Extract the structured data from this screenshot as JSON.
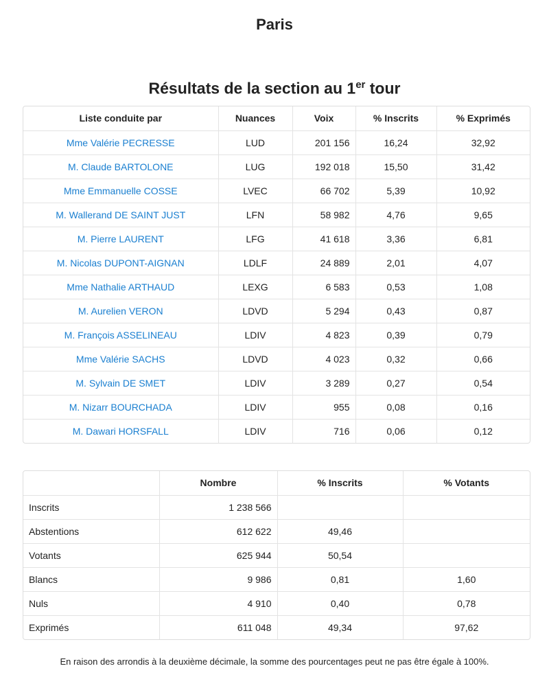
{
  "page_title": "Paris",
  "section_title": "Résultats de la section au 1",
  "section_title_sup": "er",
  "section_title_end": " tour",
  "colors": {
    "link": "#1a7fd0",
    "border": "#dddddd"
  },
  "results": {
    "headers": [
      "Liste conduite par",
      "Nuances",
      "Voix",
      "% Inscrits",
      "% Exprimés"
    ],
    "rows": [
      [
        "Mme Valérie PECRESSE",
        "LUD",
        "201 156",
        "16,24",
        "32,92"
      ],
      [
        "M. Claude BARTOLONE",
        "LUG",
        "192 018",
        "15,50",
        "31,42"
      ],
      [
        "Mme Emmanuelle COSSE",
        "LVEC",
        "66 702",
        "5,39",
        "10,92"
      ],
      [
        "M. Wallerand DE SAINT JUST",
        "LFN",
        "58 982",
        "4,76",
        "9,65"
      ],
      [
        "M. Pierre LAURENT",
        "LFG",
        "41 618",
        "3,36",
        "6,81"
      ],
      [
        "M. Nicolas DUPONT-AIGNAN",
        "LDLF",
        "24 889",
        "2,01",
        "4,07"
      ],
      [
        "Mme Nathalie ARTHAUD",
        "LEXG",
        "6 583",
        "0,53",
        "1,08"
      ],
      [
        "M. Aurelien VERON",
        "LDVD",
        "5 294",
        "0,43",
        "0,87"
      ],
      [
        "M. François ASSELINEAU",
        "LDIV",
        "4 823",
        "0,39",
        "0,79"
      ],
      [
        "Mme Valérie SACHS",
        "LDVD",
        "4 023",
        "0,32",
        "0,66"
      ],
      [
        "M. Sylvain DE SMET",
        "LDIV",
        "3 289",
        "0,27",
        "0,54"
      ],
      [
        "M. Nizarr BOURCHADA",
        "LDIV",
        "955",
        "0,08",
        "0,16"
      ],
      [
        "M. Dawari HORSFALL",
        "LDIV",
        "716",
        "0,06",
        "0,12"
      ]
    ]
  },
  "summary": {
    "headers": [
      "",
      "Nombre",
      "% Inscrits",
      "% Votants"
    ],
    "rows": [
      [
        "Inscrits",
        "1 238 566",
        "",
        ""
      ],
      [
        "Abstentions",
        "612 622",
        "49,46",
        ""
      ],
      [
        "Votants",
        "625 944",
        "50,54",
        ""
      ],
      [
        "Blancs",
        "9 986",
        "0,81",
        "1,60"
      ],
      [
        "Nuls",
        "4 910",
        "0,40",
        "0,78"
      ],
      [
        "Exprimés",
        "611 048",
        "49,34",
        "97,62"
      ]
    ]
  },
  "footnote": "En raison des arrondis à la deuxième décimale, la somme des pourcentages peut ne pas être égale à 100%."
}
